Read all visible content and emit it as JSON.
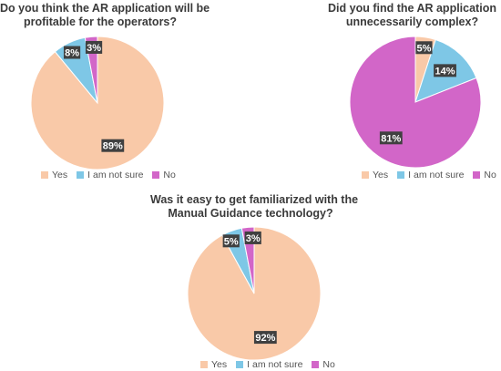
{
  "colors": {
    "yes": "#f9c9a8",
    "not_sure": "#7ec7e6",
    "no": "#d266c8",
    "label_bg": "#404040",
    "label_fg": "#ffffff"
  },
  "legend_labels": [
    "Yes",
    "I am not sure",
    "No"
  ],
  "chart_data": [
    {
      "type": "pie",
      "title_lines": [
        "Do you think the AR application will be",
        "profitable for the operators?"
      ],
      "slices": [
        {
          "label": "Yes",
          "value": 89,
          "text": "89%"
        },
        {
          "label": "I am not sure",
          "value": 8,
          "text": "8%"
        },
        {
          "label": "No",
          "value": 3,
          "text": "3%"
        }
      ],
      "legend_position": "bottom"
    },
    {
      "type": "pie",
      "title_lines": [
        "Did you find the AR application",
        "unnecessarily complex?"
      ],
      "slices": [
        {
          "label": "Yes",
          "value": 5,
          "text": "5%"
        },
        {
          "label": "I am not sure",
          "value": 14,
          "text": "14%"
        },
        {
          "label": "No",
          "value": 81,
          "text": "81%"
        }
      ],
      "legend_position": "bottom"
    },
    {
      "type": "pie",
      "title_lines": [
        "Was it easy to get familiarized with the",
        "Manual Guidance technology?"
      ],
      "slices": [
        {
          "label": "Yes",
          "value": 92,
          "text": "92%"
        },
        {
          "label": "I am not sure",
          "value": 5,
          "text": "5%"
        },
        {
          "label": "No",
          "value": 3,
          "text": "3%"
        }
      ],
      "legend_position": "bottom"
    }
  ]
}
